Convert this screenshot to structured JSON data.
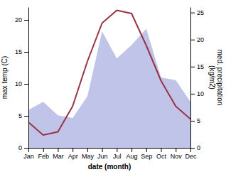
{
  "chart_data": {
    "type": "line",
    "categories": [
      "Jan",
      "Feb",
      "Mar",
      "Apr",
      "May",
      "Jun",
      "Jul",
      "Aug",
      "Sep",
      "Oct",
      "Nov",
      "Dec"
    ],
    "series": [
      {
        "type": "area",
        "axis": "y2",
        "color": "#c0c4e8",
        "values": [
          7.0,
          8.5,
          6.0,
          5.5,
          9.5,
          21.5,
          16.5,
          19.0,
          22.0,
          13.0,
          12.5,
          8.5
        ]
      },
      {
        "type": "line",
        "color": "#993344",
        "values": [
          4.0,
          2.0,
          2.5,
          6.5,
          13.5,
          19.5,
          21.5,
          21.0,
          16.0,
          10.5,
          6.5,
          4.5
        ]
      }
    ],
    "xlabel": "date (month)",
    "ylabel": "max temp (C)",
    "y2label": "med. precipitation\n(kg/m2)",
    "ylim": [
      0,
      22
    ],
    "yticks": [
      0,
      5,
      10,
      15,
      20
    ],
    "y2lim": [
      0,
      26
    ],
    "y2ticks": [
      0,
      5,
      10,
      15,
      20,
      25
    ],
    "grid": false
  }
}
